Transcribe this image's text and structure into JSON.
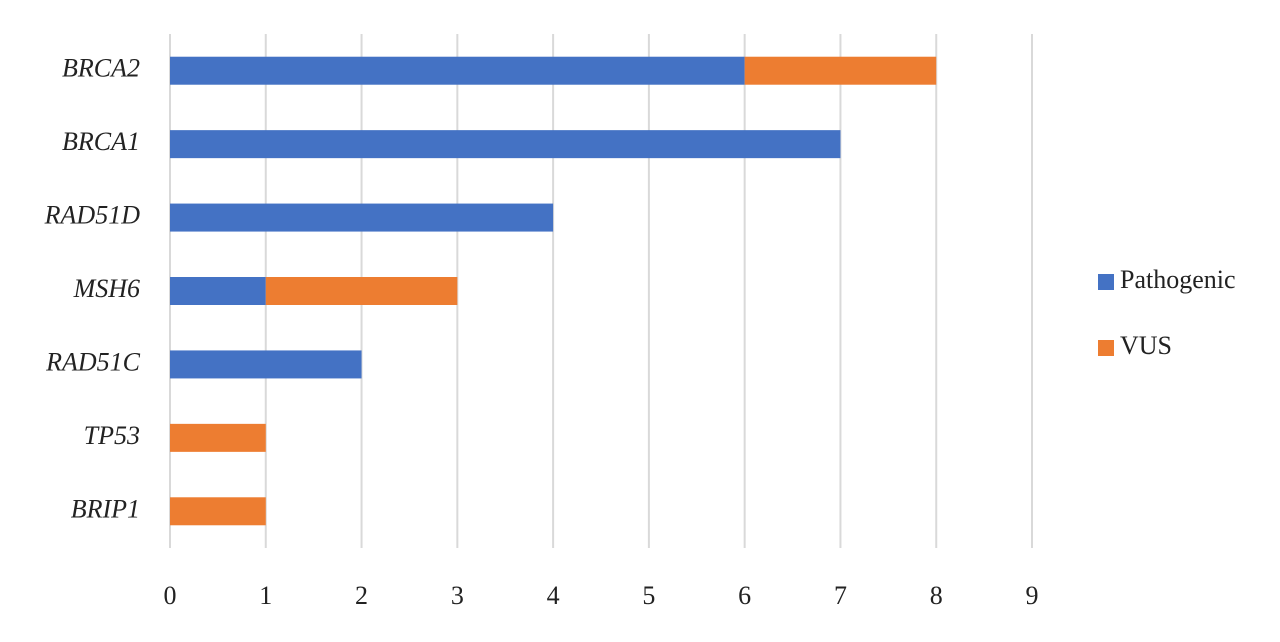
{
  "chart_data": {
    "type": "bar",
    "orientation": "horizontal",
    "stacked": true,
    "categories": [
      "BRCA2",
      "BRCA1",
      "RAD51D",
      "MSH6",
      "RAD51C",
      "TP53",
      "BRIP1"
    ],
    "series": [
      {
        "name": "Pathogenic",
        "color": "#4472c4",
        "values": [
          6,
          7,
          4,
          1,
          2,
          0,
          0
        ]
      },
      {
        "name": "VUS",
        "color": "#ed7d31",
        "values": [
          2,
          0,
          0,
          2,
          0,
          1,
          1
        ]
      }
    ],
    "xlim": [
      0,
      9
    ],
    "xticks": [
      0,
      1,
      2,
      3,
      4,
      5,
      6,
      7,
      8,
      9
    ],
    "grid": true,
    "legend": "right"
  }
}
